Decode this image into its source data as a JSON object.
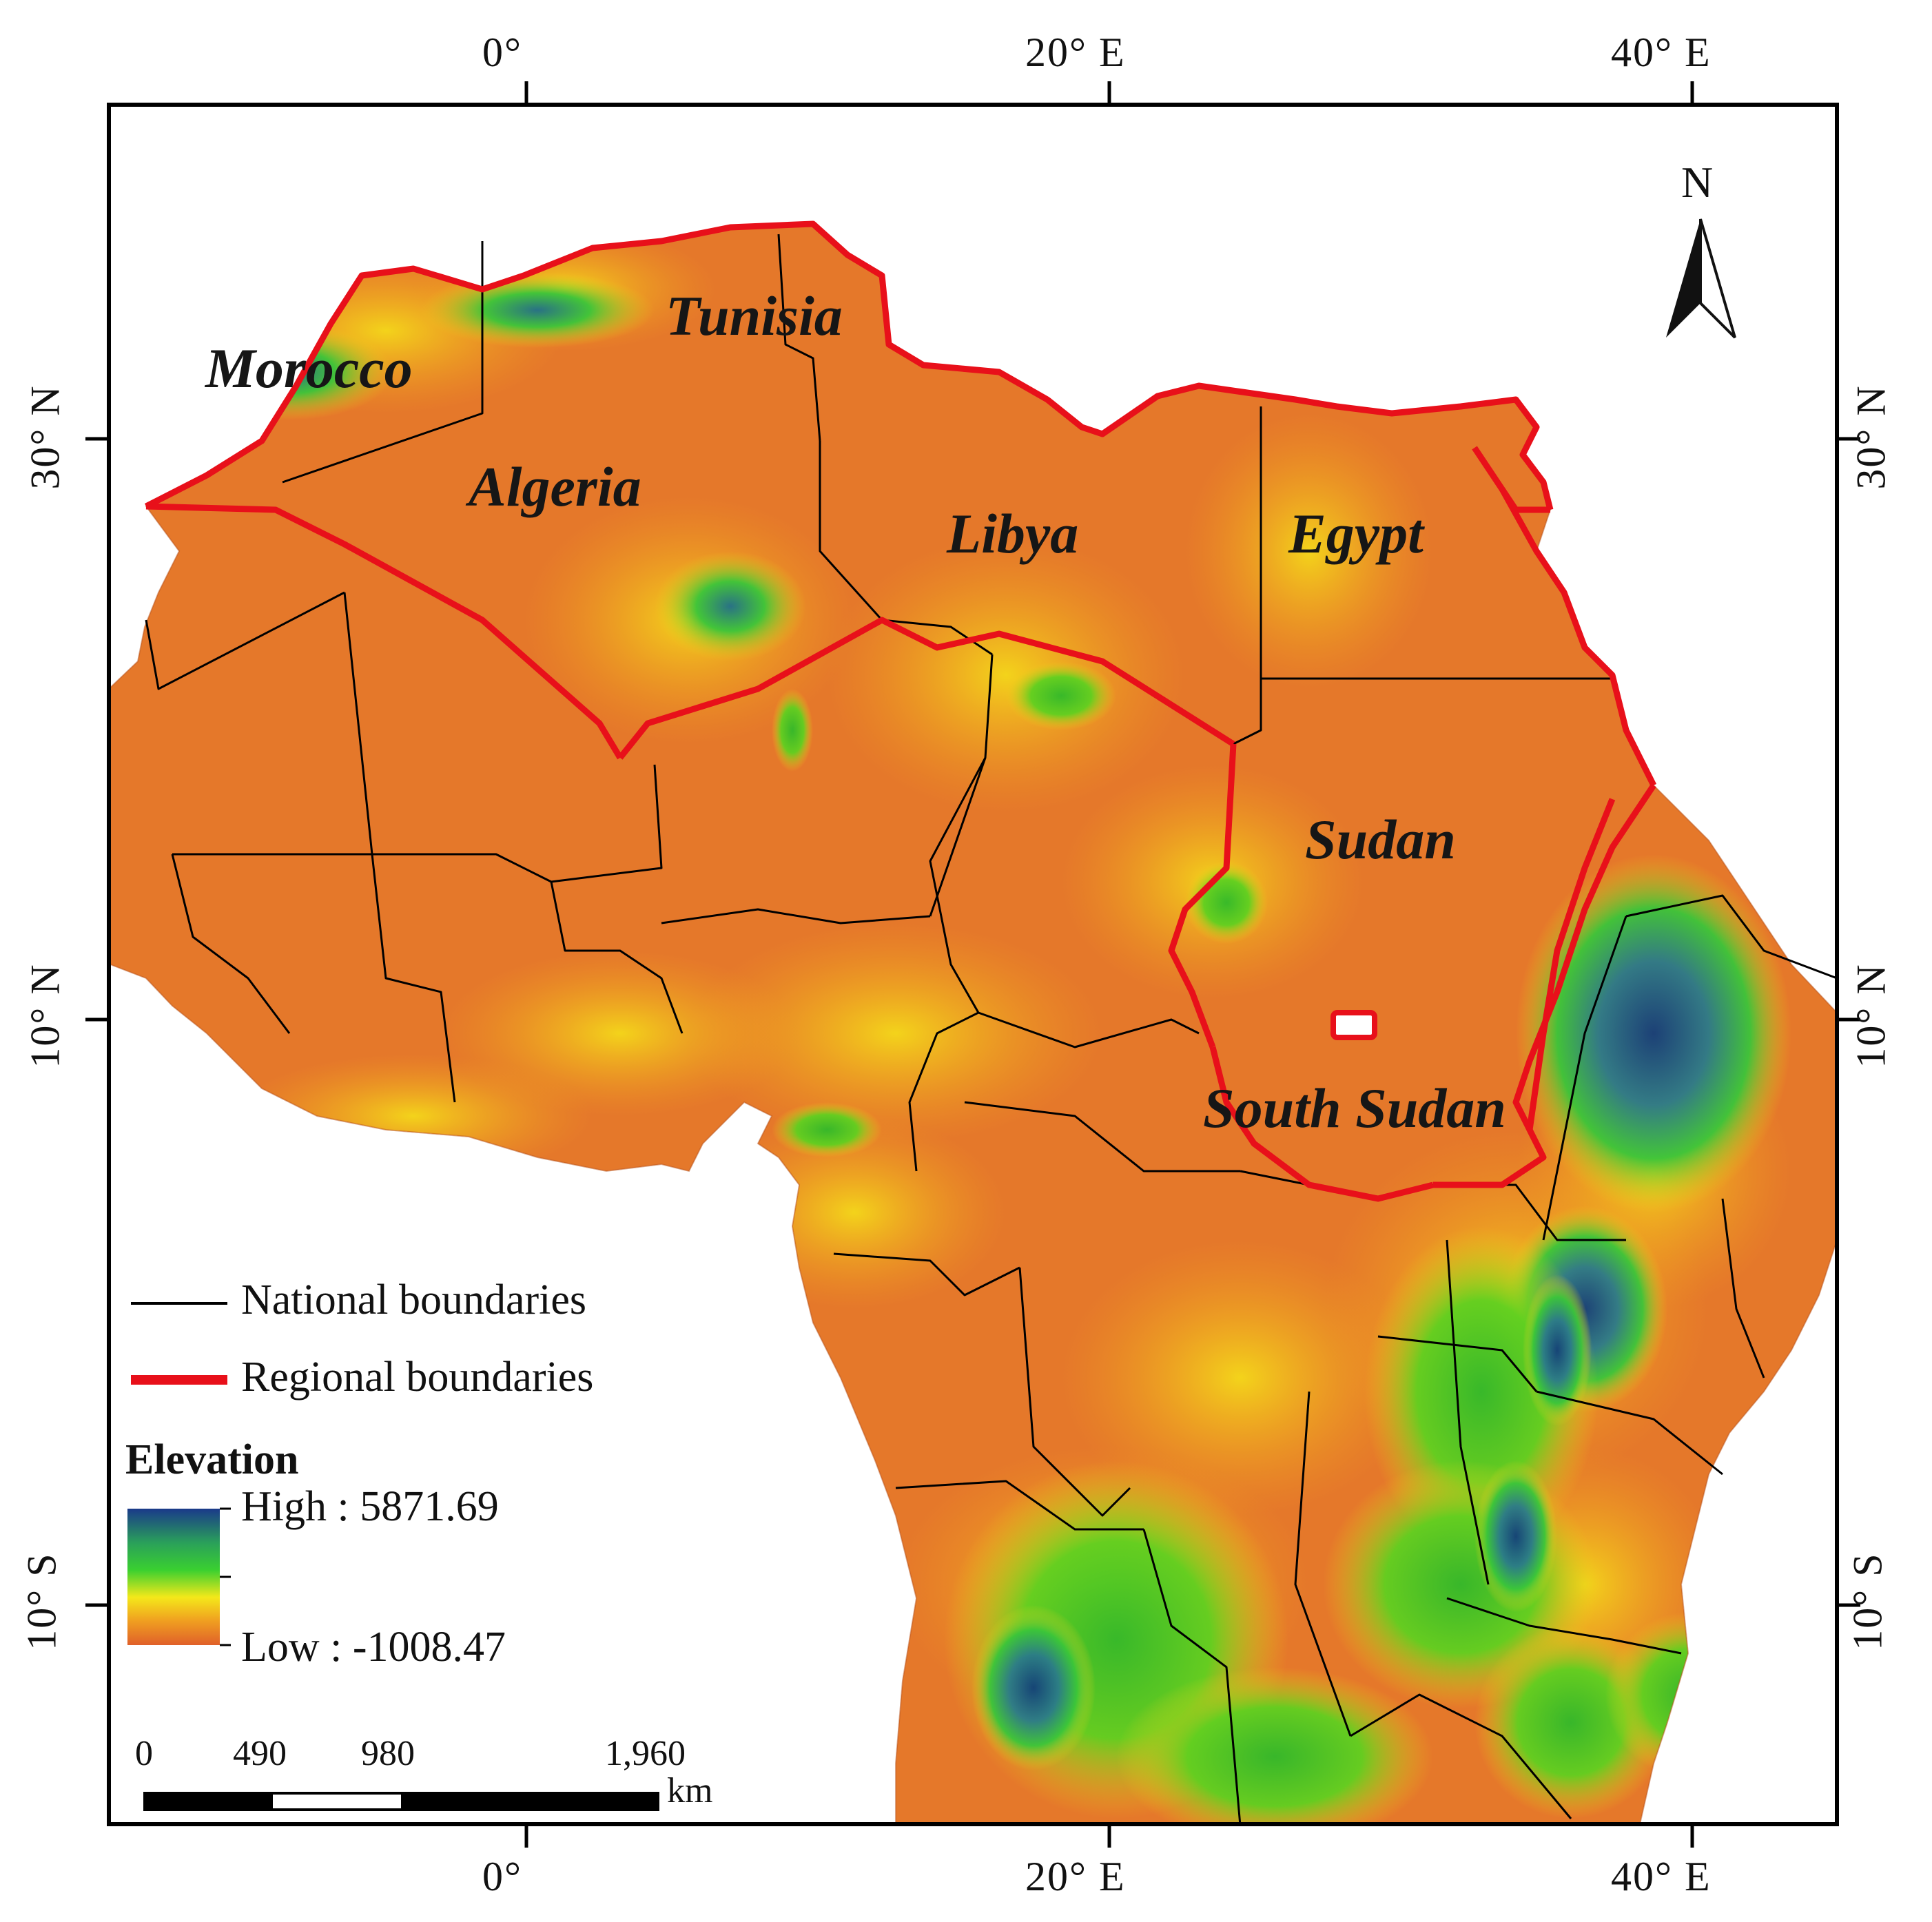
{
  "graticule": {
    "top_labels": [
      "0°",
      "20° E",
      "40° E"
    ],
    "bottom_labels": [
      "0°",
      "20° E",
      "40° E"
    ],
    "left_labels": [
      "30° N",
      "10° N",
      "10° S"
    ],
    "right_labels": [
      "30° N",
      "10° N",
      "10° S"
    ]
  },
  "north_arrow": {
    "label": "N"
  },
  "countries": {
    "morocco": "Morocco",
    "tunisia": "Tunisia",
    "algeria": "Algeria",
    "libya": "Libya",
    "egypt": "Egypt",
    "sudan": "Sudan",
    "south_sudan": "South Sudan"
  },
  "legend": {
    "national_boundaries": "National boundaries",
    "regional_boundaries": "Regional boundaries",
    "elevation_title": "Elevation",
    "high_label": "High : 5871.69",
    "low_label": "Low : -1008.47"
  },
  "scale_bar": {
    "ticks": [
      "0",
      "490",
      "980",
      "1,960"
    ],
    "unit": "km"
  },
  "colors": {
    "regional_boundary": "#e8101a",
    "national_boundary": "#000000",
    "low_elevation": "#e06a2a",
    "mid_elevation": "#f2c21a",
    "upper_elevation": "#3ac53a",
    "high_elevation": "#1a4e8a",
    "ocean": "#ffffff"
  }
}
